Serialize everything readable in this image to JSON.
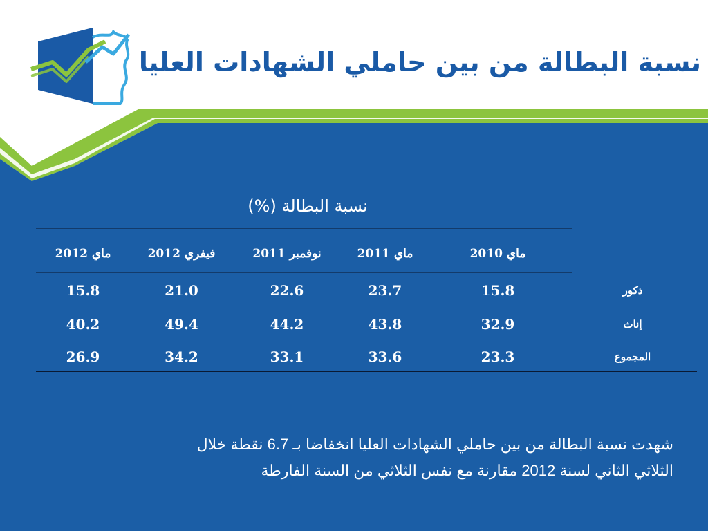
{
  "slide": {
    "title": "نسبة البطالة من بين حاملي الشهادات العليا",
    "colors": {
      "background": "#1b5ea6",
      "title": "#1a5aa6",
      "green_band": "#8cc43e",
      "text": "#ffffff"
    },
    "logo": {
      "icon": "growth-chart-logo-icon"
    }
  },
  "table": {
    "caption": "نسبة البطالة (%)",
    "headers": [
      "ماي 2010",
      "ماي 2011",
      "نوفمبر 2011",
      "فيفري 2012",
      "ماي 2012"
    ],
    "rows": [
      {
        "label": "ذكور",
        "values": [
          "15.8",
          "23.7",
          "22.6",
          "21.0",
          "15.8"
        ]
      },
      {
        "label": "إناث",
        "values": [
          "32.9",
          "43.8",
          "44.2",
          "49.4",
          "40.2"
        ]
      },
      {
        "label": "المجموع",
        "values": [
          "23.3",
          "33.6",
          "33.1",
          "34.2",
          "26.9"
        ]
      }
    ]
  },
  "note": {
    "line1": "شهدت نسبة البطالة من بين حاملي الشهادات العليا انخفاضا بـ 6.7 نقطة خلال",
    "line2": "الثلاثي الثاني لسنة 2012 مقارنة مع نفس الثلاثي من السنة الفارطة"
  }
}
